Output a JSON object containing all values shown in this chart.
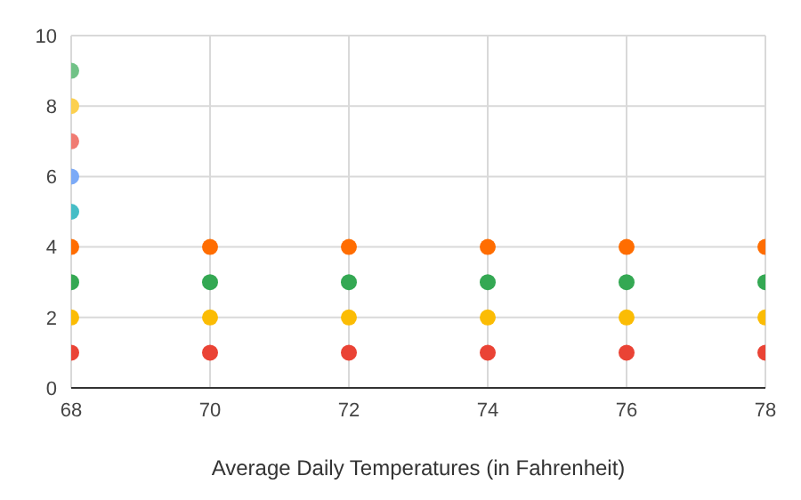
{
  "chart_data": {
    "type": "scatter",
    "xlabel": "Average Daily Temperatures (in Fahrenheit)",
    "xlim": [
      68,
      78
    ],
    "xticks": [
      68,
      70,
      72,
      74,
      76,
      78
    ],
    "ylim": [
      0,
      10
    ],
    "yticks": [
      0,
      2,
      4,
      6,
      8,
      10
    ],
    "grid": true,
    "marker": "circle",
    "series": [
      {
        "color": "#ea4335",
        "x": [
          68,
          70,
          72,
          74,
          76,
          78
        ],
        "values": [
          1,
          1,
          1,
          1,
          1,
          1
        ]
      },
      {
        "color": "#fbbc04",
        "x": [
          68,
          70,
          72,
          74,
          76,
          78
        ],
        "values": [
          2,
          2,
          2,
          2,
          2,
          2
        ]
      },
      {
        "color": "#34a853",
        "x": [
          68,
          70,
          72,
          74,
          76,
          78
        ],
        "values": [
          3,
          3,
          3,
          3,
          3,
          3
        ]
      },
      {
        "color": "#ff6d01",
        "x": [
          68,
          70,
          72,
          74,
          76,
          78
        ],
        "values": [
          4,
          4,
          4,
          4,
          4,
          4
        ]
      },
      {
        "color": "#46bdc6",
        "x": [
          68
        ],
        "values": [
          5
        ]
      },
      {
        "color": "#7baaf7",
        "x": [
          68
        ],
        "values": [
          6
        ]
      },
      {
        "color": "#f07b72",
        "x": [
          68
        ],
        "values": [
          7
        ]
      },
      {
        "color": "#fcd04f",
        "x": [
          68
        ],
        "values": [
          8
        ]
      },
      {
        "color": "#71c287",
        "x": [
          68
        ],
        "values": [
          9
        ]
      }
    ]
  }
}
